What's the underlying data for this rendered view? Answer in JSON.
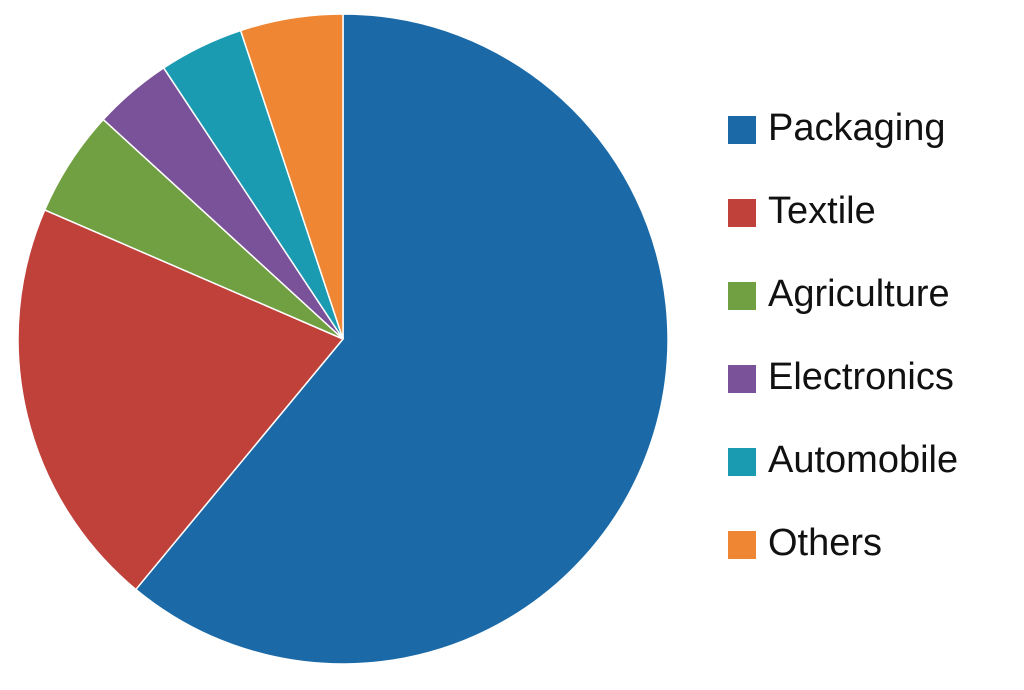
{
  "chart_data": {
    "type": "pie",
    "categories": [
      "Packaging",
      "Textile",
      "Agriculture",
      "Electronics",
      "Automobile",
      "Others"
    ],
    "values": [
      61,
      20.5,
      5.3,
      3.9,
      4.2,
      5.1
    ],
    "colors": [
      "#1b6aa7",
      "#c0413a",
      "#71a042",
      "#7a5299",
      "#1b9bb2",
      "#ef8633"
    ],
    "legend": "right"
  }
}
